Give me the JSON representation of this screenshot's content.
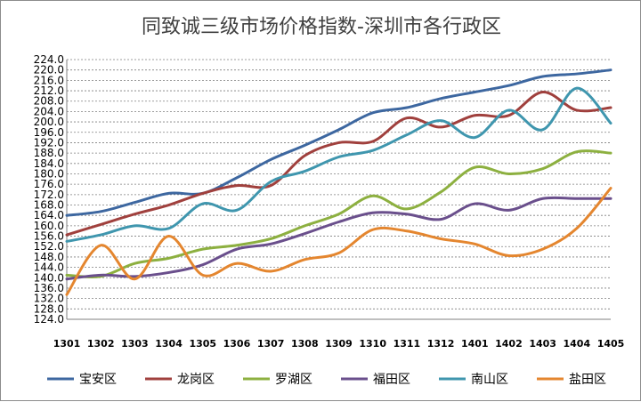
{
  "chart_data": {
    "type": "line",
    "title": "同致诚三级市场价格指数-深圳市各行政区",
    "categories": [
      "1301",
      "1302",
      "1303",
      "1304",
      "1305",
      "1306",
      "1307",
      "1308",
      "1309",
      "1310",
      "1311",
      "1312",
      "1401",
      "1402",
      "1403",
      "1404",
      "1405"
    ],
    "ylim": [
      124.0,
      224.0
    ],
    "ytick_step": 4,
    "yticks": [
      "124.0",
      "128.0",
      "132.0",
      "136.0",
      "140.0",
      "144.0",
      "148.0",
      "152.0",
      "156.0",
      "160.0",
      "164.0",
      "168.0",
      "172.0",
      "176.0",
      "180.0",
      "184.0",
      "188.0",
      "192.0",
      "196.0",
      "200.0",
      "204.0",
      "208.0",
      "212.0",
      "216.0",
      "220.0",
      "224.0"
    ],
    "grid": true,
    "legend_position": "bottom",
    "series": [
      {
        "name": "宝安区",
        "color": "#3d67a0",
        "values": [
          164.0,
          165.5,
          169.0,
          172.5,
          172.5,
          178.5,
          185.5,
          191.0,
          197.0,
          203.5,
          205.5,
          209.0,
          211.5,
          214.0,
          217.5,
          218.5,
          220.0
        ]
      },
      {
        "name": "龙岗区",
        "color": "#a0403d",
        "values": [
          156.5,
          160.5,
          164.5,
          168.0,
          172.5,
          175.5,
          175.5,
          187.0,
          192.0,
          192.5,
          201.5,
          198.0,
          202.5,
          202.5,
          211.5,
          204.5,
          205.5
        ]
      },
      {
        "name": "罗湖区",
        "color": "#8db040",
        "values": [
          141.0,
          140.5,
          145.5,
          147.5,
          151.0,
          152.5,
          155.0,
          160.0,
          164.5,
          171.5,
          166.5,
          173.0,
          182.5,
          180.0,
          182.0,
          188.5,
          188.0
        ]
      },
      {
        "name": "福田区",
        "color": "#6a4f8c",
        "values": [
          139.5,
          141.0,
          140.5,
          142.0,
          145.0,
          151.0,
          153.0,
          157.0,
          161.5,
          165.0,
          164.5,
          162.5,
          168.5,
          166.0,
          170.5,
          170.5,
          170.5
        ]
      },
      {
        "name": "南山区",
        "color": "#3f96ae",
        "values": [
          154.0,
          156.5,
          160.0,
          159.0,
          168.5,
          166.0,
          177.0,
          181.0,
          186.5,
          189.0,
          195.0,
          200.5,
          194.0,
          204.5,
          197.0,
          213.0,
          199.5
        ]
      },
      {
        "name": "盐田区",
        "color": "#e4862f",
        "values": [
          133.5,
          152.5,
          139.5,
          156.0,
          141.0,
          145.5,
          142.5,
          147.0,
          149.5,
          158.5,
          158.0,
          155.0,
          153.0,
          148.5,
          151.0,
          159.0,
          174.5
        ]
      }
    ]
  }
}
